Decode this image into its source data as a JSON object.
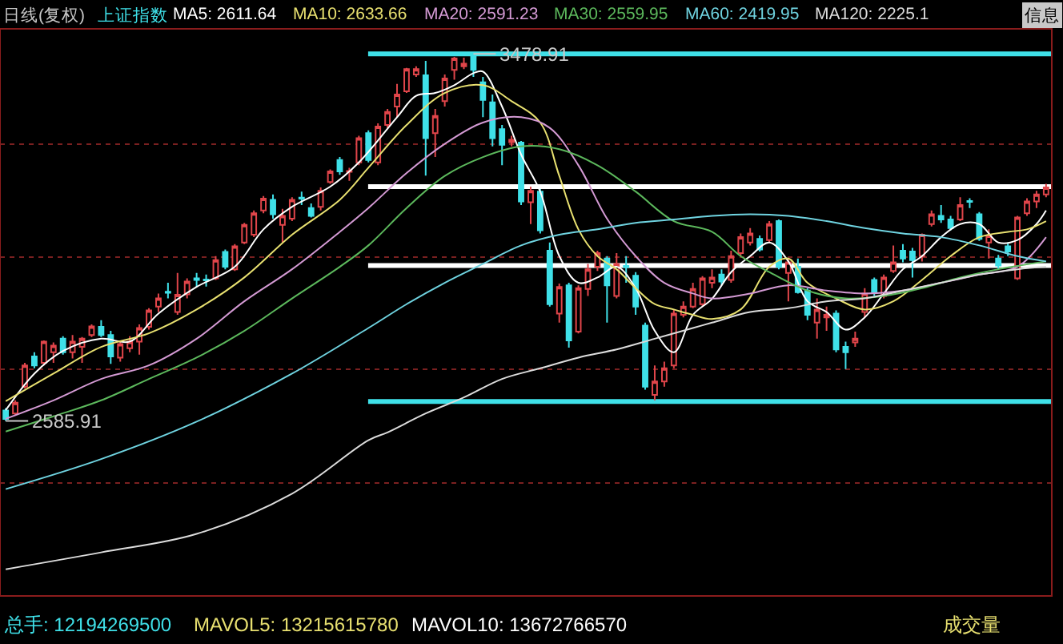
{
  "chart_data": {
    "type": "candlestick",
    "title": "日线(复权)",
    "subtitle": "上证指数",
    "categories": [
      null,
      null,
      null,
      null,
      null,
      null,
      null,
      null,
      null,
      null,
      null,
      null,
      null,
      null,
      null,
      null,
      null,
      null,
      null,
      null,
      null,
      null,
      null,
      null,
      null,
      null,
      null,
      null,
      null,
      null,
      null,
      null,
      null,
      null,
      null,
      null,
      null,
      null,
      null,
      null,
      null,
      null,
      null,
      null,
      null,
      null,
      null,
      null,
      null,
      null,
      null,
      null,
      null,
      null,
      null,
      null,
      null,
      null,
      null,
      null,
      null,
      null,
      null,
      null,
      null,
      null,
      null,
      null,
      null,
      null,
      null,
      null,
      null,
      null,
      null,
      null,
      null,
      null,
      null,
      null,
      null,
      null,
      null,
      null,
      null,
      null,
      null,
      null,
      null,
      null,
      null,
      null,
      null,
      null,
      null,
      null,
      null,
      null,
      null,
      null,
      null,
      null,
      null,
      null,
      null,
      null,
      null,
      null,
      null,
      null
    ],
    "ohlc": [
      [
        2611,
        2617,
        2585.91,
        2591
      ],
      [
        2604,
        2636,
        2600,
        2630
      ],
      [
        2669,
        2727,
        2665,
        2721
      ],
      [
        2743,
        2753,
        2714,
        2721
      ],
      [
        2727,
        2782,
        2721,
        2779
      ],
      [
        2753,
        2777,
        2727,
        2769
      ],
      [
        2786,
        2792,
        2747,
        2753
      ],
      [
        2753,
        2795,
        2738,
        2779
      ],
      [
        2766,
        2790,
        2727,
        2786
      ],
      [
        2795,
        2821,
        2790,
        2816
      ],
      [
        2815,
        2831,
        2790,
        2795
      ],
      [
        2795,
        2805,
        2725,
        2743
      ],
      [
        2740,
        2779,
        2730,
        2773
      ],
      [
        2763,
        2792,
        2753,
        2779
      ],
      [
        2779,
        2821,
        2747,
        2812
      ],
      [
        2815,
        2860,
        2808,
        2855
      ],
      [
        2864,
        2896,
        2851,
        2884
      ],
      [
        2900,
        2922,
        2884,
        2898
      ],
      [
        2851,
        2946,
        2844,
        2893
      ],
      [
        2894,
        2933,
        2884,
        2925
      ],
      [
        2933,
        2946,
        2912,
        2929
      ],
      [
        2930,
        2942,
        2913,
        2928
      ],
      [
        2933,
        2987,
        2929,
        2977
      ],
      [
        2997,
        3003,
        2955,
        2961
      ],
      [
        2955,
        3016,
        2951,
        3011
      ],
      [
        3020,
        3068,
        3016,
        3063
      ],
      [
        3039,
        3098,
        3033,
        3091
      ],
      [
        3098,
        3133,
        3091,
        3127
      ],
      [
        3124,
        3137,
        3078,
        3089
      ],
      [
        3063,
        3102,
        3020,
        3085
      ],
      [
        3078,
        3130,
        3072,
        3124
      ],
      [
        3129,
        3144,
        3111,
        3127
      ],
      [
        3104,
        3115,
        3081,
        3085
      ],
      [
        3107,
        3154,
        3098,
        3146
      ],
      [
        3167,
        3198,
        3163,
        3193
      ],
      [
        3221,
        3228,
        3185,
        3193
      ],
      [
        3192,
        3202,
        3170,
        3194
      ],
      [
        3215,
        3280,
        3208,
        3274
      ],
      [
        3286,
        3293,
        3215,
        3221
      ],
      [
        3215,
        3310,
        3208,
        3302
      ],
      [
        3306,
        3345,
        3299,
        3338
      ],
      [
        3351,
        3406,
        3325,
        3380
      ],
      [
        3388,
        3445,
        3384,
        3442
      ],
      [
        3429,
        3449,
        3423,
        3442
      ],
      [
        3427,
        3462,
        3183,
        3274
      ],
      [
        3286,
        3345,
        3228,
        3328
      ],
      [
        3364,
        3429,
        3351,
        3419
      ],
      [
        3440,
        3472,
        3416,
        3468
      ],
      [
        3449,
        3470,
        3442,
        3455
      ],
      [
        3475,
        3478.91,
        3423,
        3440
      ],
      [
        3410,
        3423,
        3325,
        3367
      ],
      [
        3361,
        3380,
        3254,
        3274
      ],
      [
        3296,
        3306,
        3208,
        3258
      ],
      [
        3264,
        3280,
        3254,
        3270
      ],
      [
        3263,
        3267,
        3111,
        3120
      ],
      [
        3118,
        3156,
        3065,
        3146
      ],
      [
        3144,
        3150,
        3042,
        3050
      ],
      [
        3000,
        3020,
        2864,
        2870
      ],
      [
        2847,
        2920,
        2825,
        2912
      ],
      [
        2916,
        2922,
        2764,
        2782
      ],
      [
        2803,
        2916,
        2799,
        2909
      ],
      [
        2907,
        2968,
        2890,
        2955
      ],
      [
        2961,
        3000,
        2951,
        2994
      ],
      [
        2981,
        2987,
        2825,
        2916
      ],
      [
        2890,
        2994,
        2884,
        2968
      ],
      [
        2963,
        2987,
        2922,
        2960
      ],
      [
        2939,
        2948,
        2844,
        2864
      ],
      [
        2818,
        2825,
        2662,
        2669
      ],
      [
        2649,
        2721,
        2636,
        2682
      ],
      [
        2682,
        2730,
        2669,
        2714
      ],
      [
        2721,
        2857,
        2714,
        2847
      ],
      [
        2844,
        2877,
        2838,
        2864
      ],
      [
        2864,
        2922,
        2860,
        2907
      ],
      [
        2870,
        2938,
        2864,
        2933
      ],
      [
        2922,
        2955,
        2909,
        2935
      ],
      [
        2942,
        2955,
        2916,
        2925
      ],
      [
        2929,
        3000,
        2922,
        2987
      ],
      [
        2994,
        3042,
        2987,
        3033
      ],
      [
        3020,
        3055,
        3013,
        3042
      ],
      [
        3029,
        3037,
        2998,
        3003
      ],
      [
        3026,
        3072,
        3020,
        3065
      ],
      [
        3072,
        3076,
        2955,
        2961
      ],
      [
        2946,
        2981,
        2877,
        2972
      ],
      [
        2961,
        2981,
        2896,
        2899
      ],
      [
        2903,
        2909,
        2831,
        2844
      ],
      [
        2825,
        2884,
        2786,
        2857
      ],
      [
        2838,
        2864,
        2805,
        2844
      ],
      [
        2847,
        2855,
        2753,
        2760
      ],
      [
        2766,
        2779,
        2712,
        2753
      ],
      [
        2777,
        2803,
        2766,
        2786
      ],
      [
        2851,
        2909,
        2838,
        2896
      ],
      [
        2929,
        2935,
        2890,
        2899
      ],
      [
        2890,
        2942,
        2884,
        2935
      ],
      [
        2951,
        3013,
        2946,
        2972
      ],
      [
        3000,
        3016,
        2972,
        2981
      ],
      [
        2998,
        3007,
        2935,
        2977
      ],
      [
        2987,
        3042,
        2974,
        3039
      ],
      [
        3065,
        3098,
        3059,
        3089
      ],
      [
        3085,
        3111,
        3068,
        3076
      ],
      [
        3076,
        3085,
        3050,
        3055
      ],
      [
        3076,
        3130,
        3072,
        3111
      ],
      [
        3121,
        3128,
        3104,
        3119
      ],
      [
        3089,
        3094,
        3024,
        3029
      ],
      [
        3020,
        3052,
        2981,
        3037
      ],
      [
        2981,
        2990,
        2955,
        2964
      ],
      [
        3011,
        3020,
        2987,
        2998
      ],
      [
        2933,
        3085,
        2929,
        3081
      ],
      [
        3091,
        3128,
        3085,
        3120
      ],
      [
        3120,
        3146,
        3104,
        3137
      ],
      [
        3137,
        3163,
        3130,
        3154
      ]
    ],
    "series": [
      {
        "name": "MA5: 2611.64",
        "type": "line",
        "color": "#ffffff",
        "values": [
          2612,
          null,
          null,
          2701,
          null,
          null,
          2756,
          null,
          null,
          null,
          2786,
          null,
          null,
          2779,
          null,
          null,
          2847,
          null,
          null,
          null,
          2912,
          null,
          null,
          null,
          2961,
          null,
          null,
          3052,
          null,
          null,
          3107,
          null,
          null,
          null,
          3156,
          null,
          null,
          3215,
          null,
          null,
          null,
          3325,
          null,
          3377,
          null,
          3384,
          null,
          3403,
          null,
          3432,
          3436,
          null,
          3351,
          null,
          3234,
          null,
          3144,
          null,
          2987,
          null,
          2922,
          null,
          2935,
          null,
          2961,
          null,
          2909,
          null,
          2805,
          null,
          2753,
          null,
          2844,
          null,
          2883,
          null,
          2948,
          null,
          2987,
          null,
          3020,
          null,
          2974,
          null,
          2877,
          null,
          2851,
          null,
          2808,
          null,
          2838,
          null,
          2896,
          null,
          2955,
          null,
          2987,
          null,
          3033,
          null,
          3065,
          null,
          3065,
          null,
          3020,
          null,
          3026,
          null,
          3065,
          3098
        ]
      },
      {
        "name": "MA10: 2633.66",
        "type": "line",
        "color": "#e8e070",
        "values": [
          2634,
          null,
          null,
          null,
          null,
          2701,
          null,
          null,
          null,
          null,
          2766,
          null,
          null,
          null,
          null,
          2799,
          null,
          null,
          null,
          null,
          2857,
          null,
          null,
          null,
          null,
          2935,
          null,
          null,
          null,
          null,
          3039,
          null,
          null,
          null,
          null,
          3124,
          null,
          null,
          3202,
          null,
          null,
          null,
          3306,
          null,
          null,
          null,
          3384,
          null,
          null,
          null,
          3403,
          null,
          null,
          3364,
          null,
          null,
          3312,
          null,
          3182,
          null,
          3052,
          null,
          2987,
          null,
          2955,
          null,
          2909,
          null,
          2870,
          null,
          2857,
          null,
          2844,
          null,
          2834,
          null,
          null,
          2857,
          null,
          null,
          2961,
          null,
          2981,
          null,
          2922,
          null,
          null,
          2884,
          null,
          null,
          2857,
          null,
          null,
          2877,
          null,
          null,
          2929,
          null,
          null,
          2987,
          null,
          null,
          3033,
          null,
          null,
          3046,
          null,
          3052,
          null,
          3072
        ]
      },
      {
        "name": "MA20: 2591.23",
        "type": "line",
        "color": "#d49ad4",
        "values": [
          2591,
          null,
          null,
          null,
          null,
          2636,
          null,
          null,
          null,
          null,
          2688,
          null,
          null,
          null,
          null,
          2721,
          null,
          null,
          null,
          null,
          2786,
          null,
          null,
          null,
          null,
          2877,
          null,
          null,
          null,
          null,
          2955,
          null,
          null,
          null,
          null,
          3046,
          null,
          null,
          3104,
          null,
          null,
          null,
          3189,
          null,
          null,
          null,
          3260,
          null,
          null,
          null,
          3312,
          null,
          null,
          null,
          3325,
          null,
          null,
          3299,
          null,
          null,
          3208,
          null,
          null,
          3078,
          null,
          null,
          2987,
          null,
          null,
          2922,
          null,
          null,
          2896,
          null,
          2884,
          null,
          null,
          null,
          2896,
          null,
          null,
          null,
          2916,
          null,
          null,
          null,
          2903,
          null,
          null,
          null,
          2896,
          null,
          null,
          null,
          2903,
          null,
          null,
          null,
          2922,
          null,
          null,
          null,
          2942,
          null,
          null,
          null,
          2961,
          null,
          null,
          3033
        ]
      },
      {
        "name": "MA30: 2559.95",
        "type": "line",
        "color": "#5cb85c",
        "values": [
          2560,
          null,
          null,
          null,
          null,
          2597,
          null,
          null,
          null,
          null,
          2636,
          null,
          null,
          null,
          null,
          2688,
          null,
          null,
          null,
          null,
          2740,
          null,
          null,
          null,
          null,
          2805,
          null,
          null,
          null,
          null,
          2884,
          null,
          null,
          null,
          null,
          2961,
          null,
          null,
          3013,
          null,
          null,
          null,
          3104,
          null,
          null,
          null,
          3182,
          null,
          null,
          null,
          3228,
          null,
          null,
          null,
          3254,
          null,
          null,
          null,
          3247,
          null,
          null,
          null,
          3208,
          null,
          null,
          null,
          3144,
          null,
          null,
          null,
          3072,
          null,
          null,
          null,
          3046,
          null,
          null,
          2987,
          null,
          null,
          2948,
          null,
          null,
          null,
          2903,
          null,
          null,
          null,
          2884,
          null,
          null,
          null,
          2890,
          null,
          null,
          null,
          2909,
          null,
          null,
          null,
          2935,
          null,
          null,
          null,
          2955,
          null,
          null,
          null,
          null,
          2974
        ]
      },
      {
        "name": "MA60: 2419.95",
        "type": "line",
        "color": "#6fd3e0",
        "values": [
          2420,
          null,
          null,
          null,
          null,
          null,
          null,
          null,
          null,
          null,
          2493,
          null,
          null,
          null,
          null,
          null,
          null,
          null,
          null,
          null,
          2584,
          null,
          null,
          null,
          null,
          null,
          null,
          null,
          null,
          null,
          2701,
          null,
          null,
          null,
          null,
          null,
          null,
          null,
          2812,
          null,
          null,
          null,
          2870,
          null,
          null,
          null,
          2922,
          null,
          null,
          null,
          2968,
          null,
          null,
          null,
          3013,
          null,
          null,
          null,
          3039,
          null,
          null,
          null,
          3052,
          null,
          null,
          null,
          3068,
          null,
          null,
          null,
          3076,
          null,
          null,
          null,
          3085,
          null,
          null,
          null,
          3089,
          null,
          null,
          null,
          3085,
          null,
          null,
          null,
          3072,
          null,
          null,
          null,
          3055,
          null,
          null,
          null,
          3042,
          null,
          null,
          null,
          3033,
          null,
          null,
          null,
          3013,
          null,
          null,
          null,
          2987,
          null,
          null,
          2974
        ]
      },
      {
        "name": "MA120: 2225.1",
        "type": "line",
        "color": "#dcdcdc",
        "values": [
          2225,
          null,
          null,
          null,
          null,
          null,
          null,
          null,
          null,
          null,
          2266,
          null,
          null,
          null,
          null,
          null,
          null,
          null,
          null,
          null,
          2311,
          null,
          null,
          null,
          null,
          null,
          null,
          null,
          null,
          null,
          2409,
          null,
          null,
          null,
          null,
          null,
          null,
          null,
          2539,
          null,
          2558,
          null,
          null,
          null,
          2604,
          null,
          null,
          null,
          2643,
          null,
          null,
          null,
          2688,
          null,
          null,
          null,
          2714,
          null,
          null,
          null,
          2740,
          null,
          null,
          null,
          2760,
          null,
          null,
          null,
          2786,
          null,
          null,
          null,
          2812,
          null,
          2825,
          null,
          null,
          null,
          2851,
          null,
          null,
          null,
          2860,
          null,
          null,
          null,
          2877,
          null,
          null,
          null,
          2884,
          null,
          null,
          null,
          2903,
          null,
          null,
          null,
          2922,
          null,
          null,
          null,
          2942,
          null,
          null,
          null,
          2955,
          null,
          null,
          2961
        ]
      }
    ],
    "ylim": [
      2160,
      3540
    ],
    "yticks": [
      {
        "value": 3260,
        "label": null
      },
      {
        "value": 2984,
        "label": null
      },
      {
        "value": 2711,
        "label": null
      },
      {
        "value": 2434,
        "label": null
      }
    ],
    "grid": "y",
    "legend": false,
    "ref_lines": [
      {
        "axis": "y",
        "value": 3479,
        "color": "#3fe0e8"
      },
      {
        "axis": "y",
        "value": 2633,
        "color": "#3fe0e8"
      },
      {
        "axis": "y",
        "value": 3156,
        "color": "#ffffff"
      },
      {
        "axis": "y",
        "value": 2964,
        "color": "#ffffff"
      }
    ],
    "annotations": [
      {
        "text": "3478.91",
        "y": 3478.91
      },
      {
        "text": "2585.91",
        "y": 2585.91
      },
      "总手: 12194269500",
      "MAVOL5: 13215615780",
      "MAVOL10: 13672766570",
      "成交量",
      "信息"
    ]
  }
}
